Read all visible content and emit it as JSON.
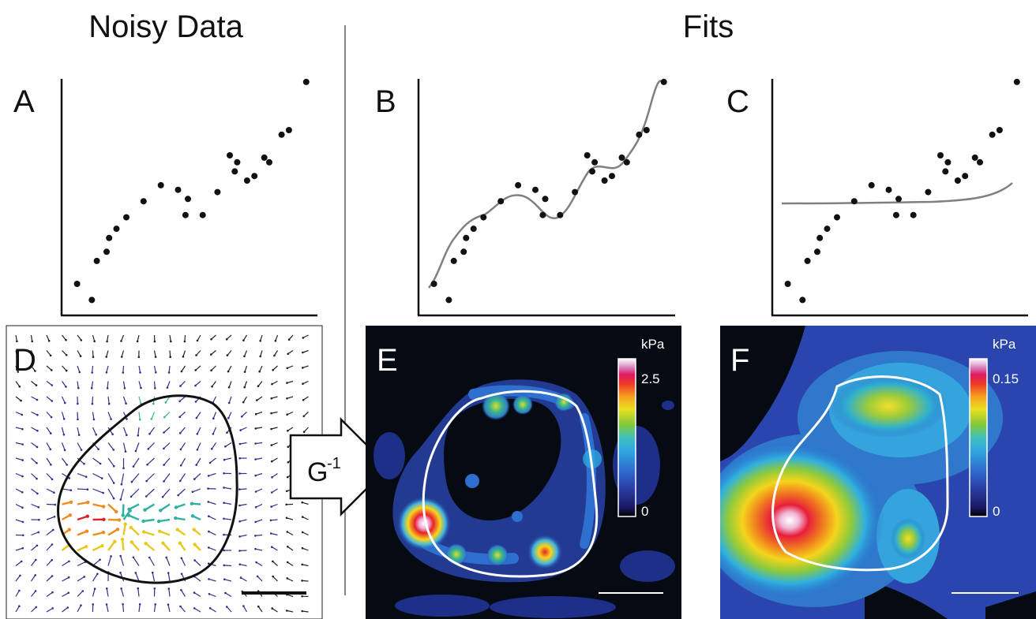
{
  "headers": {
    "noisy": "Noisy Data",
    "fits": "Fits"
  },
  "panels": {
    "A": {
      "label": "A"
    },
    "B": {
      "label": "B"
    },
    "C": {
      "label": "C"
    },
    "D": {
      "label": "D"
    },
    "E": {
      "label": "E",
      "unit": "kPa",
      "cb_max": "2.5",
      "cb_min": "0"
    },
    "F": {
      "label": "F",
      "unit": "kPa",
      "cb_max": "0.15",
      "cb_min": "0"
    }
  },
  "operator": {
    "base": "G",
    "sup": "-1"
  },
  "chart_data": [
    {
      "panel": "A",
      "type": "scatter",
      "xlim": [
        0,
        100
      ],
      "ylim": [
        0,
        100
      ],
      "points": [
        [
          5,
          11
        ],
        [
          11,
          4
        ],
        [
          13,
          21
        ],
        [
          17,
          25
        ],
        [
          18,
          31
        ],
        [
          21,
          35
        ],
        [
          25,
          40
        ],
        [
          32,
          47
        ],
        [
          39,
          54
        ],
        [
          46,
          52
        ],
        [
          49,
          41
        ],
        [
          50,
          48
        ],
        [
          56,
          41
        ],
        [
          62,
          51
        ],
        [
          67,
          67
        ],
        [
          69,
          60
        ],
        [
          70,
          64
        ],
        [
          74,
          56
        ],
        [
          77,
          58
        ],
        [
          81,
          66
        ],
        [
          83,
          64
        ],
        [
          88,
          76
        ],
        [
          91,
          78
        ],
        [
          98,
          99
        ]
      ]
    },
    {
      "panel": "B",
      "type": "scatter",
      "fit": "interpolating-curve",
      "xlim": [
        0,
        100
      ],
      "ylim": [
        0,
        100
      ],
      "points": [
        [
          5,
          11
        ],
        [
          11,
          4
        ],
        [
          13,
          21
        ],
        [
          17,
          25
        ],
        [
          18,
          31
        ],
        [
          21,
          35
        ],
        [
          25,
          40
        ],
        [
          32,
          47
        ],
        [
          39,
          54
        ],
        [
          46,
          52
        ],
        [
          49,
          41
        ],
        [
          50,
          48
        ],
        [
          56,
          41
        ],
        [
          62,
          51
        ],
        [
          67,
          67
        ],
        [
          69,
          60
        ],
        [
          70,
          64
        ],
        [
          74,
          56
        ],
        [
          77,
          58
        ],
        [
          81,
          66
        ],
        [
          83,
          64
        ],
        [
          88,
          76
        ],
        [
          91,
          78
        ],
        [
          98,
          99
        ]
      ]
    },
    {
      "panel": "C",
      "type": "scatter",
      "fit": "smooth-curve",
      "xlim": [
        0,
        100
      ],
      "ylim": [
        0,
        100
      ],
      "points": [
        [
          5,
          11
        ],
        [
          11,
          4
        ],
        [
          13,
          21
        ],
        [
          17,
          25
        ],
        [
          18,
          31
        ],
        [
          21,
          35
        ],
        [
          25,
          40
        ],
        [
          32,
          47
        ],
        [
          39,
          54
        ],
        [
          46,
          52
        ],
        [
          49,
          41
        ],
        [
          50,
          48
        ],
        [
          56,
          41
        ],
        [
          62,
          51
        ],
        [
          67,
          67
        ],
        [
          69,
          60
        ],
        [
          70,
          64
        ],
        [
          74,
          56
        ],
        [
          77,
          58
        ],
        [
          81,
          66
        ],
        [
          83,
          64
        ],
        [
          88,
          76
        ],
        [
          91,
          78
        ],
        [
          98,
          99
        ]
      ]
    }
  ],
  "colors": {
    "fit_line": "#808080",
    "map_bg": "#060a12",
    "outline": "#ffffff"
  }
}
